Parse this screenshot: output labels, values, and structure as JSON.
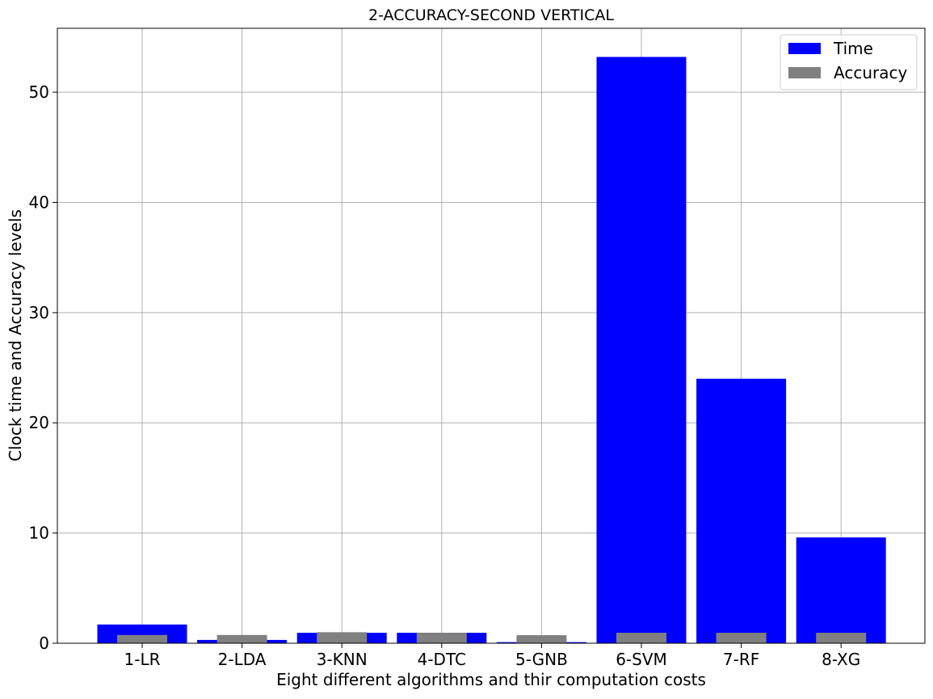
{
  "chart_data": {
    "type": "bar",
    "title": "2-ACCURACY-SECOND VERTICAL",
    "xlabel": "Eight different algorithms and thir computation costs",
    "ylabel": "Clock time and Accuracy levels",
    "categories": [
      "1-LR",
      "2-LDA",
      "3-KNN",
      "4-DTC",
      "5-GNB",
      "6-SVM",
      "7-RF",
      "8-XG"
    ],
    "series": [
      {
        "name": "Time",
        "color": "#0000ff",
        "values": [
          1.7,
          0.3,
          0.95,
          0.95,
          0.1,
          53.2,
          24.0,
          9.6
        ]
      },
      {
        "name": "Accuracy",
        "color": "#808080",
        "values": [
          0.75,
          0.75,
          1.0,
          0.95,
          0.73,
          0.95,
          0.95,
          0.95
        ]
      }
    ],
    "ylim": [
      0,
      55.8
    ],
    "yticks": [
      0,
      10,
      20,
      30,
      40,
      50
    ],
    "grid": true,
    "legend_position": "top-right"
  }
}
